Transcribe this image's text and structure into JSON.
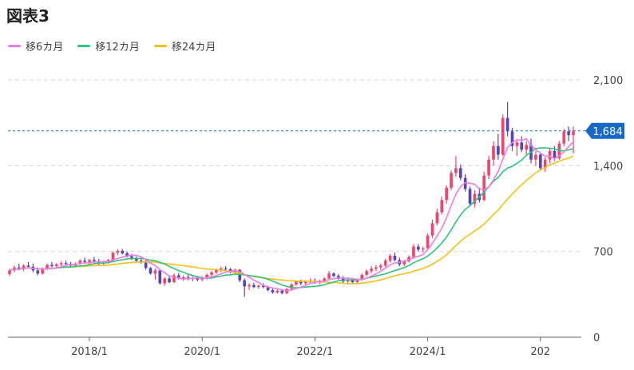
{
  "title": "図表3",
  "chart_data": {
    "type": "candlestick",
    "x_tick_labels": [
      "2018/1",
      "2020/1",
      "2022/1",
      "2024/1",
      "202"
    ],
    "y_ticks": [
      0,
      700,
      1400,
      2100
    ],
    "y_tick_labels": [
      "0",
      "700",
      "1,400",
      "2,100"
    ],
    "ylim": [
      0,
      2100
    ],
    "last_value": 1684,
    "last_value_label": "1,684",
    "grid": true,
    "legend_position": "top-left",
    "colors": {
      "up": "#f0456e",
      "down": "#5a43b8",
      "ma6": "#ee7ce6",
      "ma12": "#2ec47a",
      "ma24": "#f5c117",
      "last_line": "#2e6fb0",
      "last_box": "#1668c9",
      "grid": "#d6d6d6",
      "axis": "#666666"
    },
    "series": [
      {
        "name": "移6カ月",
        "color": "#ee7ce6"
      },
      {
        "name": "移12カ月",
        "color": "#2ec47a"
      },
      {
        "name": "移24カ月",
        "color": "#f5c117"
      }
    ],
    "candles": [
      [
        515,
        560,
        500,
        545
      ],
      [
        545,
        585,
        530,
        570
      ],
      [
        570,
        600,
        545,
        555
      ],
      [
        555,
        595,
        540,
        585
      ],
      [
        585,
        615,
        560,
        575
      ],
      [
        575,
        600,
        530,
        545
      ],
      [
        545,
        570,
        505,
        520
      ],
      [
        520,
        570,
        510,
        560
      ],
      [
        560,
        600,
        545,
        590
      ],
      [
        590,
        615,
        570,
        580
      ],
      [
        580,
        605,
        565,
        595
      ],
      [
        595,
        620,
        580,
        605
      ],
      [
        605,
        625,
        585,
        600
      ],
      [
        600,
        615,
        575,
        585
      ],
      [
        585,
        610,
        570,
        600
      ],
      [
        600,
        635,
        590,
        625
      ],
      [
        625,
        650,
        600,
        615
      ],
      [
        615,
        640,
        590,
        630
      ],
      [
        630,
        655,
        610,
        620
      ],
      [
        620,
        640,
        580,
        600
      ],
      [
        600,
        625,
        585,
        610
      ],
      [
        610,
        640,
        600,
        630
      ],
      [
        630,
        700,
        620,
        690
      ],
      [
        690,
        720,
        670,
        705
      ],
      [
        705,
        720,
        675,
        685
      ],
      [
        685,
        700,
        650,
        660
      ],
      [
        660,
        680,
        630,
        645
      ],
      [
        645,
        660,
        610,
        625
      ],
      [
        625,
        650,
        600,
        610
      ],
      [
        610,
        630,
        550,
        565
      ],
      [
        565,
        575,
        510,
        520
      ],
      [
        520,
        560,
        470,
        545
      ],
      [
        545,
        550,
        430,
        440
      ],
      [
        440,
        490,
        420,
        480
      ],
      [
        480,
        500,
        440,
        450
      ],
      [
        450,
        520,
        440,
        505
      ],
      [
        505,
        525,
        470,
        480
      ],
      [
        480,
        505,
        460,
        490
      ],
      [
        490,
        510,
        465,
        475
      ],
      [
        475,
        500,
        455,
        485
      ],
      [
        485,
        500,
        455,
        470
      ],
      [
        470,
        495,
        455,
        480
      ],
      [
        480,
        520,
        470,
        510
      ],
      [
        510,
        540,
        495,
        530
      ],
      [
        530,
        560,
        515,
        550
      ],
      [
        550,
        575,
        530,
        560
      ],
      [
        560,
        580,
        540,
        555
      ],
      [
        555,
        565,
        520,
        530
      ],
      [
        530,
        560,
        515,
        550
      ],
      [
        550,
        555,
        450,
        465
      ],
      [
        465,
        480,
        330,
        415
      ],
      [
        415,
        440,
        385,
        425
      ],
      [
        425,
        445,
        400,
        410
      ],
      [
        410,
        430,
        395,
        420
      ],
      [
        420,
        440,
        400,
        410
      ],
      [
        410,
        420,
        375,
        385
      ],
      [
        385,
        400,
        355,
        365
      ],
      [
        365,
        395,
        355,
        380
      ],
      [
        380,
        390,
        350,
        360
      ],
      [
        360,
        400,
        350,
        395
      ],
      [
        395,
        440,
        380,
        430
      ],
      [
        430,
        465,
        420,
        455
      ],
      [
        455,
        470,
        425,
        440
      ],
      [
        440,
        465,
        425,
        455
      ],
      [
        455,
        480,
        440,
        460
      ],
      [
        460,
        480,
        435,
        450
      ],
      [
        450,
        470,
        430,
        460
      ],
      [
        460,
        490,
        450,
        480
      ],
      [
        480,
        540,
        470,
        520
      ],
      [
        520,
        530,
        490,
        500
      ],
      [
        500,
        515,
        470,
        480
      ],
      [
        480,
        500,
        440,
        455
      ],
      [
        455,
        480,
        430,
        465
      ],
      [
        465,
        475,
        440,
        450
      ],
      [
        450,
        480,
        440,
        470
      ],
      [
        470,
        520,
        460,
        510
      ],
      [
        510,
        555,
        495,
        540
      ],
      [
        540,
        580,
        520,
        560
      ],
      [
        560,
        590,
        540,
        570
      ],
      [
        570,
        600,
        550,
        585
      ],
      [
        585,
        640,
        575,
        625
      ],
      [
        625,
        680,
        610,
        665
      ],
      [
        665,
        690,
        620,
        630
      ],
      [
        630,
        650,
        580,
        595
      ],
      [
        595,
        630,
        580,
        620
      ],
      [
        620,
        670,
        610,
        655
      ],
      [
        655,
        760,
        640,
        740
      ],
      [
        740,
        760,
        700,
        715
      ],
      [
        715,
        740,
        690,
        725
      ],
      [
        725,
        850,
        715,
        830
      ],
      [
        830,
        960,
        810,
        930
      ],
      [
        930,
        1050,
        910,
        1020
      ],
      [
        1020,
        1150,
        1000,
        1120
      ],
      [
        1120,
        1240,
        1090,
        1220
      ],
      [
        1220,
        1360,
        1200,
        1340
      ],
      [
        1340,
        1480,
        1310,
        1380
      ],
      [
        1380,
        1410,
        1280,
        1300
      ],
      [
        1300,
        1330,
        1190,
        1210
      ],
      [
        1210,
        1230,
        1070,
        1090
      ],
      [
        1090,
        1200,
        1060,
        1170
      ],
      [
        1170,
        1220,
        1100,
        1120
      ],
      [
        1120,
        1350,
        1110,
        1320
      ],
      [
        1320,
        1480,
        1290,
        1450
      ],
      [
        1450,
        1600,
        1400,
        1560
      ],
      [
        1560,
        1660,
        1450,
        1490
      ],
      [
        1490,
        1820,
        1480,
        1790
      ],
      [
        1790,
        1920,
        1640,
        1680
      ],
      [
        1680,
        1710,
        1520,
        1560
      ],
      [
        1560,
        1620,
        1480,
        1590
      ],
      [
        1590,
        1640,
        1510,
        1530
      ],
      [
        1530,
        1600,
        1490,
        1570
      ],
      [
        1570,
        1620,
        1420,
        1450
      ],
      [
        1450,
        1520,
        1400,
        1490
      ],
      [
        1490,
        1500,
        1360,
        1380
      ],
      [
        1380,
        1470,
        1350,
        1450
      ],
      [
        1450,
        1540,
        1420,
        1520
      ],
      [
        1520,
        1560,
        1440,
        1460
      ],
      [
        1460,
        1600,
        1450,
        1580
      ],
      [
        1580,
        1700,
        1560,
        1680
      ],
      [
        1680,
        1720,
        1600,
        1650
      ],
      [
        1650,
        1720,
        1500,
        1684
      ]
    ]
  }
}
